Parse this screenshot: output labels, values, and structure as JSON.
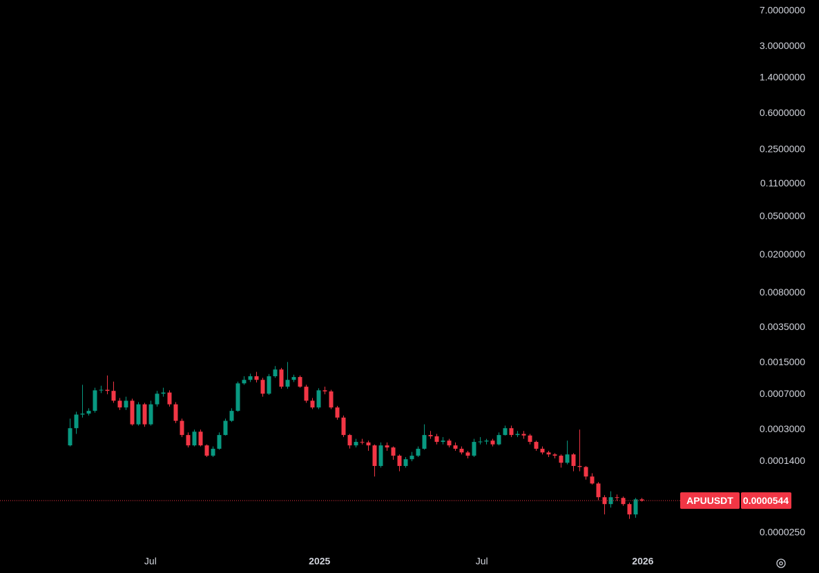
{
  "chart_data": {
    "type": "candlestick",
    "symbol": "APUUSDT",
    "log_scale": true,
    "up_color": "#089981",
    "down_color": "#f23645",
    "last_price_line": true,
    "xlim": [
      -11.2,
      97.1
    ],
    "xticks": [
      {
        "value": 13,
        "label": "Jul"
      },
      {
        "value": 40.2,
        "label": "2025"
      },
      {
        "value": 66.3,
        "label": "Jul"
      },
      {
        "value": 92.2,
        "label": "2026"
      }
    ],
    "ylim": [
      1.57e-05,
      9.13
    ],
    "yticks": [
      {
        "value": 7,
        "label": "7.0000000"
      },
      {
        "value": 3,
        "label": "3.0000000"
      },
      {
        "value": 1.4,
        "label": "1.4000000"
      },
      {
        "value": 0.6,
        "label": "0.6000000"
      },
      {
        "value": 0.25,
        "label": "0.2500000"
      },
      {
        "value": 0.11,
        "label": "0.1100000"
      },
      {
        "value": 0.05,
        "label": "0.0500000"
      },
      {
        "value": 0.02,
        "label": "0.0200000"
      },
      {
        "value": 0.008,
        "label": "0.0080000"
      },
      {
        "value": 0.0035,
        "label": "0.0035000"
      },
      {
        "value": 0.0015,
        "label": "0.0015000"
      },
      {
        "value": 0.0007,
        "label": "0.0007000"
      },
      {
        "value": 0.0003,
        "label": "0.0003000"
      },
      {
        "value": 0.00014,
        "label": "0.0001400"
      },
      {
        "value": 2.5e-05,
        "label": "0.0000250"
      }
    ],
    "open": [
      0.000205,
      0.00031,
      0.00043,
      0.00044,
      0.00047,
      0.00077,
      0.00078,
      0.00076,
      0.0006,
      0.00051,
      0.0006,
      0.00034,
      0.00055,
      0.00034,
      0.00055,
      0.00071,
      0.00073,
      0.00055,
      0.00037,
      0.000263,
      0.000205,
      0.000285,
      0.000205,
      0.00016,
      0.000189,
      0.000263,
      0.00037,
      0.00047,
      0.00091,
      0.00099,
      0.00108,
      0.00099,
      0.00071,
      0.00108,
      0.00127,
      0.00084,
      0.00099,
      0.00106,
      0.00084,
      0.0006,
      0.00051,
      0.00077,
      0.00075,
      0.00051,
      0.0004,
      0.000263,
      0.000205,
      0.000223,
      0.00022,
      0.000205,
      0.000125,
      0.000205,
      0.000195,
      0.00016,
      0.000125,
      0.000147,
      0.00016,
      0.000189,
      0.000263,
      0.000255,
      0.000223,
      0.00023,
      0.000205,
      0.000189,
      0.000173,
      0.00016,
      0.000223,
      0.000225,
      0.00023,
      0.00021,
      0.000263,
      0.00031,
      0.000263,
      0.00027,
      0.00026,
      0.000223,
      0.000189,
      0.000173,
      0.000165,
      0.00016,
      0.000135,
      0.000165,
      0.000125,
      0.000122,
      9.7e-05,
      8.2e-05,
      5.9e-05,
      5e-05,
      5.9e-05,
      5.8e-05,
      5e-05,
      3.9e-05,
      5.6e-05
    ],
    "high": [
      0.00039,
      0.00046,
      0.00088,
      0.0005,
      0.00082,
      0.00086,
      0.0011,
      0.00095,
      0.00064,
      0.00066,
      0.00063,
      0.00058,
      0.00057,
      0.0006,
      0.00076,
      0.00082,
      0.00077,
      0.00058,
      0.00039,
      0.00028,
      0.0003,
      0.0003,
      0.00021,
      0.0002,
      0.00028,
      0.00039,
      0.0005,
      0.00095,
      0.00108,
      0.00115,
      0.0012,
      0.00104,
      0.00114,
      0.00138,
      0.00132,
      0.00152,
      0.00112,
      0.0011,
      0.00088,
      0.00064,
      0.00081,
      0.00084,
      0.00078,
      0.00053,
      0.00042,
      0.00027,
      0.00024,
      0.00024,
      0.00023,
      0.00021,
      0.00022,
      0.00022,
      0.0002,
      0.000165,
      0.000155,
      0.000175,
      0.0002,
      0.00034,
      0.00029,
      0.00027,
      0.00025,
      0.00024,
      0.00022,
      0.0002,
      0.00018,
      0.00024,
      0.00025,
      0.00024,
      0.00024,
      0.00028,
      0.00033,
      0.00033,
      0.00029,
      0.00029,
      0.00027,
      0.00023,
      0.0002,
      0.00018,
      0.00017,
      0.000165,
      0.00023,
      0.00017,
      0.0003,
      0.000125,
      0.000105,
      8.5e-05,
      6.2e-05,
      6.8e-05,
      6.3e-05,
      6e-05,
      5.2e-05,
      5.8e-05,
      5.8e-05
    ],
    "low": [
      0.0002,
      0.00027,
      0.0004,
      0.00042,
      0.00045,
      0.00072,
      0.0007,
      0.00057,
      0.00048,
      0.00048,
      0.00033,
      0.00033,
      0.00032,
      0.00033,
      0.00052,
      0.00066,
      0.00052,
      0.00035,
      0.00025,
      0.000195,
      0.0002,
      0.0002,
      0.000155,
      0.000155,
      0.000185,
      0.00026,
      0.00036,
      0.00046,
      0.00088,
      0.00094,
      0.00093,
      0.00066,
      0.00069,
      0.00104,
      0.0008,
      0.0008,
      0.00094,
      0.00082,
      0.00057,
      0.00049,
      0.00049,
      0.0007,
      0.00049,
      0.00038,
      0.00025,
      0.00019,
      0.000195,
      0.00021,
      0.00018,
      9.7e-05,
      0.00012,
      0.00018,
      0.000145,
      0.00011,
      0.00012,
      0.00014,
      0.000155,
      0.000185,
      0.00024,
      0.00021,
      0.00021,
      0.000195,
      0.00018,
      0.000165,
      0.00015,
      0.000155,
      0.00021,
      0.00021,
      0.0002,
      0.000205,
      0.00026,
      0.00025,
      0.00025,
      0.00024,
      0.00021,
      0.00018,
      0.000165,
      0.000155,
      0.00015,
      0.00012,
      0.00013,
      0.00011,
      0.00011,
      9e-05,
      8e-05,
      5.5e-05,
      3.9e-05,
      4.6e-05,
      5.4e-05,
      4.8e-05,
      3.5e-05,
      3.6e-05,
      5.3e-05
    ],
    "close": [
      0.00031,
      0.00043,
      0.00044,
      0.00047,
      0.00077,
      0.00078,
      0.00076,
      0.0006,
      0.00051,
      0.0006,
      0.00034,
      0.00055,
      0.00034,
      0.00055,
      0.00071,
      0.00073,
      0.00055,
      0.00037,
      0.000263,
      0.000205,
      0.000285,
      0.000205,
      0.00016,
      0.000189,
      0.000263,
      0.00037,
      0.00047,
      0.00091,
      0.00099,
      0.00108,
      0.00099,
      0.00071,
      0.00108,
      0.00127,
      0.00084,
      0.00099,
      0.00106,
      0.00084,
      0.0006,
      0.00051,
      0.00077,
      0.00075,
      0.00051,
      0.0004,
      0.000263,
      0.000205,
      0.000223,
      0.00022,
      0.000205,
      0.000125,
      0.000205,
      0.000195,
      0.00016,
      0.000125,
      0.000147,
      0.00016,
      0.000189,
      0.000263,
      0.000255,
      0.000223,
      0.00023,
      0.000205,
      0.000189,
      0.000173,
      0.00016,
      0.000223,
      0.000225,
      0.00023,
      0.00021,
      0.000263,
      0.00031,
      0.000263,
      0.00027,
      0.00026,
      0.000223,
      0.000189,
      0.000173,
      0.000165,
      0.00016,
      0.000135,
      0.000165,
      0.000125,
      0.000122,
      9.7e-05,
      8.2e-05,
      5.9e-05,
      5e-05,
      5.9e-05,
      5.8e-05,
      5e-05,
      3.9e-05,
      5.6e-05,
      5.44e-05
    ]
  }
}
